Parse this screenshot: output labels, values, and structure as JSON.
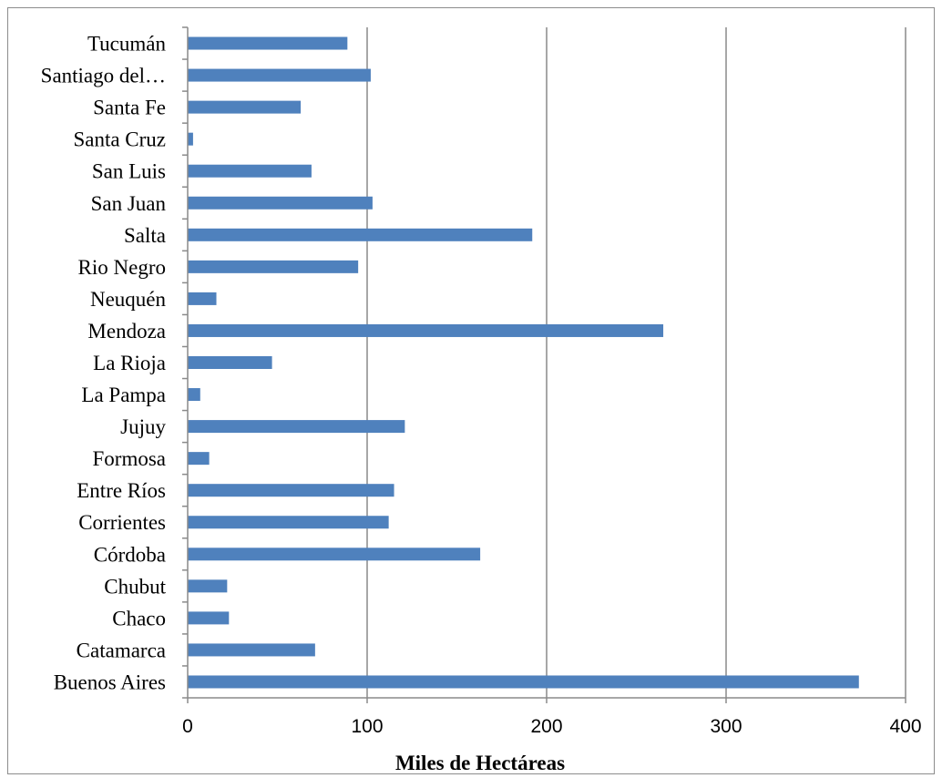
{
  "chart_data": {
    "type": "bar",
    "orientation": "horizontal",
    "categories": [
      "Tucumán",
      "Santiago del…",
      "Santa Fe",
      "Santa Cruz",
      "San Luis",
      "San Juan",
      "Salta",
      "Rio Negro",
      "Neuquén",
      "Mendoza",
      "La Rioja",
      "La Pampa",
      "Jujuy",
      "Formosa",
      "Entre Ríos",
      "Corrientes",
      "Córdoba",
      "Chubut",
      "Chaco",
      "Catamarca",
      "Buenos Aires"
    ],
    "values": [
      89,
      102,
      63,
      3,
      69,
      103,
      192,
      95,
      16,
      265,
      47,
      7,
      121,
      12,
      115,
      112,
      163,
      22,
      23,
      71,
      374
    ],
    "xlabel": "Miles de Hectáreas",
    "xlim": [
      0,
      400
    ],
    "xticks": [
      "0",
      "100",
      "200",
      "300",
      "400"
    ],
    "grid": "vertical major",
    "bar_color": "#4F81BD",
    "legend": "none"
  }
}
